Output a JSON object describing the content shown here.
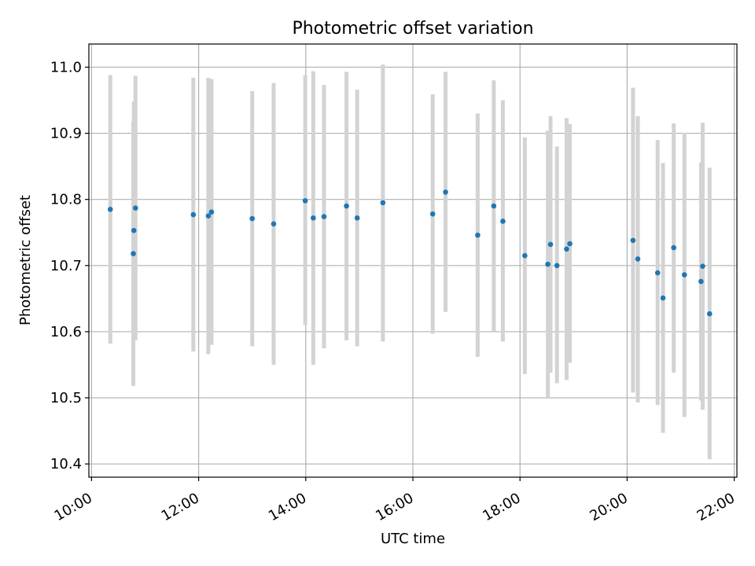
{
  "chart_data": {
    "type": "scatter",
    "title": "Photometric offset variation",
    "xlabel": "UTC time",
    "ylabel": "Photometric offset",
    "x_unit": "hours UTC",
    "xlim": [
      9.95,
      22.05
    ],
    "ylim": [
      10.38,
      11.035
    ],
    "x_ticks": [
      {
        "value": 10,
        "label": "10:00"
      },
      {
        "value": 12,
        "label": "12:00"
      },
      {
        "value": 14,
        "label": "14:00"
      },
      {
        "value": 16,
        "label": "16:00"
      },
      {
        "value": 18,
        "label": "18:00"
      },
      {
        "value": 20,
        "label": "20:00"
      },
      {
        "value": 22,
        "label": "22:00"
      }
    ],
    "y_ticks": [
      {
        "value": 10.4,
        "label": "10.4"
      },
      {
        "value": 10.5,
        "label": "10.5"
      },
      {
        "value": 10.6,
        "label": "10.6"
      },
      {
        "value": 10.7,
        "label": "10.7"
      },
      {
        "value": 10.8,
        "label": "10.8"
      },
      {
        "value": 10.9,
        "label": "10.9"
      },
      {
        "value": 11.0,
        "label": "11.0"
      }
    ],
    "grid": true,
    "colors": {
      "points": "#1f77b4",
      "errorbars": "#d3d3d3"
    },
    "series": [
      {
        "points": [
          {
            "x": 10.35,
            "y": 10.785,
            "lo": 10.582,
            "hi": 10.988
          },
          {
            "x": 10.78,
            "y": 10.718,
            "lo": 10.518,
            "hi": 10.918
          },
          {
            "x": 10.79,
            "y": 10.753,
            "lo": 10.603,
            "hi": 10.948
          },
          {
            "x": 10.82,
            "y": 10.787,
            "lo": 10.587,
            "hi": 10.987
          },
          {
            "x": 11.9,
            "y": 10.777,
            "lo": 10.57,
            "hi": 10.984
          },
          {
            "x": 12.18,
            "y": 10.775,
            "lo": 10.566,
            "hi": 10.984
          },
          {
            "x": 12.24,
            "y": 10.781,
            "lo": 10.58,
            "hi": 10.982
          },
          {
            "x": 13.0,
            "y": 10.771,
            "lo": 10.578,
            "hi": 10.964
          },
          {
            "x": 13.4,
            "y": 10.763,
            "lo": 10.55,
            "hi": 10.976
          },
          {
            "x": 13.99,
            "y": 10.798,
            "lo": 10.61,
            "hi": 10.988
          },
          {
            "x": 14.14,
            "y": 10.772,
            "lo": 10.55,
            "hi": 10.994
          },
          {
            "x": 14.34,
            "y": 10.774,
            "lo": 10.575,
            "hi": 10.973
          },
          {
            "x": 14.76,
            "y": 10.79,
            "lo": 10.587,
            "hi": 10.993
          },
          {
            "x": 14.96,
            "y": 10.772,
            "lo": 10.578,
            "hi": 10.966
          },
          {
            "x": 15.44,
            "y": 10.795,
            "lo": 10.585,
            "hi": 11.004
          },
          {
            "x": 16.37,
            "y": 10.778,
            "lo": 10.597,
            "hi": 10.959
          },
          {
            "x": 16.61,
            "y": 10.811,
            "lo": 10.63,
            "hi": 10.993
          },
          {
            "x": 17.21,
            "y": 10.746,
            "lo": 10.562,
            "hi": 10.93
          },
          {
            "x": 17.51,
            "y": 10.79,
            "lo": 10.601,
            "hi": 10.98
          },
          {
            "x": 17.68,
            "y": 10.767,
            "lo": 10.585,
            "hi": 10.95
          },
          {
            "x": 18.09,
            "y": 10.715,
            "lo": 10.536,
            "hi": 10.894
          },
          {
            "x": 18.52,
            "y": 10.702,
            "lo": 10.5,
            "hi": 10.904
          },
          {
            "x": 18.57,
            "y": 10.732,
            "lo": 10.538,
            "hi": 10.926
          },
          {
            "x": 18.69,
            "y": 10.7,
            "lo": 10.522,
            "hi": 10.88
          },
          {
            "x": 18.87,
            "y": 10.725,
            "lo": 10.527,
            "hi": 10.923
          },
          {
            "x": 18.93,
            "y": 10.733,
            "lo": 10.553,
            "hi": 10.914
          },
          {
            "x": 20.11,
            "y": 10.738,
            "lo": 10.508,
            "hi": 10.969
          },
          {
            "x": 20.2,
            "y": 10.71,
            "lo": 10.493,
            "hi": 10.926
          },
          {
            "x": 20.57,
            "y": 10.689,
            "lo": 10.489,
            "hi": 10.89
          },
          {
            "x": 20.67,
            "y": 10.651,
            "lo": 10.447,
            "hi": 10.855
          },
          {
            "x": 20.87,
            "y": 10.727,
            "lo": 10.538,
            "hi": 10.915
          },
          {
            "x": 21.07,
            "y": 10.686,
            "lo": 10.471,
            "hi": 10.901
          },
          {
            "x": 21.38,
            "y": 10.676,
            "lo": 10.496,
            "hi": 10.856
          },
          {
            "x": 21.41,
            "y": 10.699,
            "lo": 10.482,
            "hi": 10.916
          },
          {
            "x": 21.54,
            "y": 10.627,
            "lo": 10.407,
            "hi": 10.848
          }
        ]
      }
    ]
  }
}
